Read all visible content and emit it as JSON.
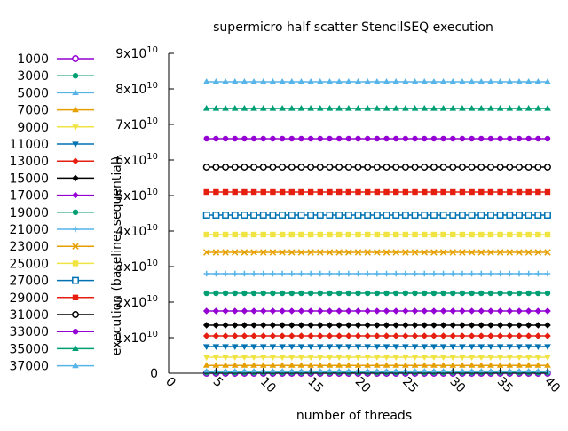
{
  "chart_data": {
    "type": "line",
    "title": "supermicro half scatter StencilSEQ execution",
    "xlabel": "number of threads",
    "ylabel": "execution (baseline: sequential)",
    "xlim": [
      0,
      40
    ],
    "ylim": [
      0,
      9
    ],
    "x_ticks": [
      0,
      5,
      10,
      15,
      20,
      25,
      30,
      35,
      40
    ],
    "y_ticks": [
      {
        "mant": "0",
        "exp": ""
      },
      {
        "mant": "1x10",
        "exp": "10"
      },
      {
        "mant": "2x10",
        "exp": "10"
      },
      {
        "mant": "3x10",
        "exp": "10"
      },
      {
        "mant": "4x10",
        "exp": "10"
      },
      {
        "mant": "5x10",
        "exp": "10"
      },
      {
        "mant": "6x10",
        "exp": "10"
      },
      {
        "mant": "7x10",
        "exp": "10"
      },
      {
        "mant": "8x10",
        "exp": "10"
      },
      {
        "mant": "9x10",
        "exp": "10"
      }
    ],
    "y_unit": "1e10",
    "x_start": 4,
    "x_end": 40,
    "legend_position": "left",
    "grid": false,
    "series": [
      {
        "name": "1000",
        "y": 0.0,
        "color": "#9400d3",
        "marker": "circle-open"
      },
      {
        "name": "3000",
        "y": 0.02,
        "color": "#009e73",
        "marker": "circle-filled"
      },
      {
        "name": "5000",
        "y": 0.05,
        "color": "#56b4e9",
        "marker": "triangle-up"
      },
      {
        "name": "7000",
        "y": 0.22,
        "color": "#e69f00",
        "marker": "triangle-up"
      },
      {
        "name": "9000",
        "y": 0.45,
        "color": "#f0e442",
        "marker": "triangle-down"
      },
      {
        "name": "11000",
        "y": 0.75,
        "color": "#0072b2",
        "marker": "triangle-down"
      },
      {
        "name": "13000",
        "y": 1.05,
        "color": "#e51e10",
        "marker": "diamond"
      },
      {
        "name": "15000",
        "y": 1.35,
        "color": "#000000",
        "marker": "diamond"
      },
      {
        "name": "17000",
        "y": 1.75,
        "color": "#9400d3",
        "marker": "diamond"
      },
      {
        "name": "19000",
        "y": 2.25,
        "color": "#009e73",
        "marker": "circle-filled"
      },
      {
        "name": "21000",
        "y": 2.8,
        "color": "#56b4e9",
        "marker": "plus"
      },
      {
        "name": "23000",
        "y": 3.4,
        "color": "#e69f00",
        "marker": "cross"
      },
      {
        "name": "25000",
        "y": 3.9,
        "color": "#f0e442",
        "marker": "square-filled"
      },
      {
        "name": "27000",
        "y": 4.45,
        "color": "#0072b2",
        "marker": "square-open"
      },
      {
        "name": "29000",
        "y": 5.1,
        "color": "#e51e10",
        "marker": "square-filled"
      },
      {
        "name": "31000",
        "y": 5.8,
        "color": "#000000",
        "marker": "circle-open"
      },
      {
        "name": "33000",
        "y": 6.6,
        "color": "#9400d3",
        "marker": "circle-filled"
      },
      {
        "name": "35000",
        "y": 7.45,
        "color": "#009e73",
        "marker": "triangle-up"
      },
      {
        "name": "37000",
        "y": 8.2,
        "color": "#56b4e9",
        "marker": "triangle-up"
      }
    ]
  }
}
